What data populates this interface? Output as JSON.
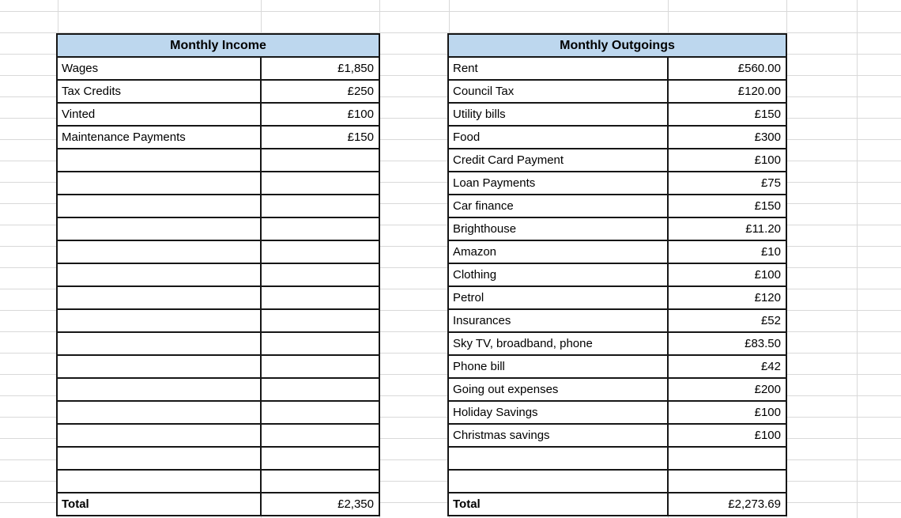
{
  "colors": {
    "header_fill": "#BDD7EE",
    "border": "#161616",
    "gridline": "#d9d9d9",
    "text": "#000000"
  },
  "income_table": {
    "title": "Monthly Income",
    "rows": [
      {
        "label": "Wages",
        "value": "£1,850"
      },
      {
        "label": "Tax Credits",
        "value": "£250"
      },
      {
        "label": "Vinted",
        "value": "£100"
      },
      {
        "label": "Maintenance Payments",
        "value": "£150"
      }
    ],
    "empty_rows": 15,
    "total_label": "Total",
    "total_value": "£2,350"
  },
  "outgoings_table": {
    "title": "Monthly Outgoings",
    "rows": [
      {
        "label": "Rent",
        "value": "£560.00"
      },
      {
        "label": "Council Tax",
        "value": "£120.00"
      },
      {
        "label": "Utility bills",
        "value": "£150"
      },
      {
        "label": "Food",
        "value": "£300"
      },
      {
        "label": "Credit Card Payment",
        "value": "£100"
      },
      {
        "label": "Loan Payments",
        "value": "£75"
      },
      {
        "label": "Car finance",
        "value": "£150"
      },
      {
        "label": "Brighthouse",
        "value": "£11.20"
      },
      {
        "label": "Amazon",
        "value": "£10"
      },
      {
        "label": "Clothing",
        "value": "£100"
      },
      {
        "label": "Petrol",
        "value": "£120"
      },
      {
        "label": "Insurances",
        "value": "£52"
      },
      {
        "label": "Sky TV, broadband, phone",
        "value": "£83.50"
      },
      {
        "label": "Phone bill",
        "value": "£42"
      },
      {
        "label": "Going out expenses",
        "value": "£200"
      },
      {
        "label": "Holiday Savings",
        "value": "£100"
      },
      {
        "label": "Christmas savings",
        "value": "£100"
      }
    ],
    "empty_rows": 2,
    "total_label": "Total",
    "total_value": "£2,273.69"
  }
}
